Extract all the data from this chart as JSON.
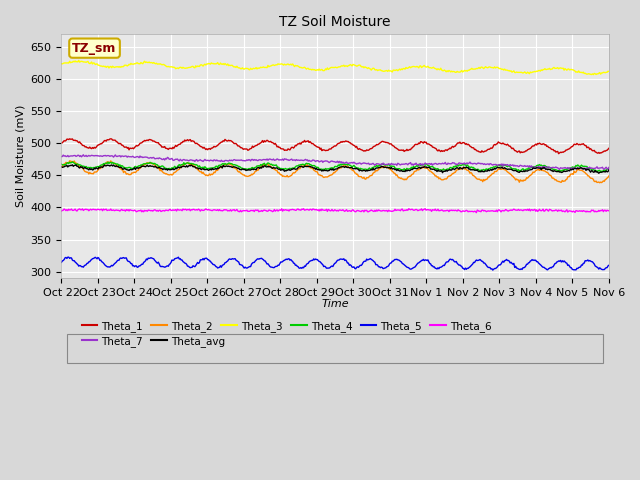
{
  "title": "TZ Soil Moisture",
  "xlabel": "Time",
  "ylabel": "Soil Moisture (mV)",
  "ylim": [
    290,
    670
  ],
  "yticks": [
    300,
    350,
    400,
    450,
    500,
    550,
    600,
    650
  ],
  "x_labels": [
    "Oct 22",
    "Oct 23",
    "Oct 24",
    "Oct 25",
    "Oct 26",
    "Oct 27",
    "Oct 28",
    "Oct 29",
    "Oct 30",
    "Oct 31",
    "Nov 1",
    "Nov 2",
    "Nov 3",
    "Nov 4",
    "Nov 5",
    "Nov 6"
  ],
  "n_days": 15,
  "n_points": 600,
  "series_order": [
    "Theta_1",
    "Theta_2",
    "Theta_3",
    "Theta_4",
    "Theta_5",
    "Theta_6",
    "Theta_7",
    "Theta_avg"
  ],
  "series": {
    "Theta_1": {
      "color": "#cc0000",
      "base": 500,
      "trend": -8,
      "amp": 7,
      "freq": 14
    },
    "Theta_2": {
      "color": "#ff8800",
      "base": 463,
      "trend": -15,
      "amp": 9,
      "freq": 14
    },
    "Theta_3": {
      "color": "#ffff00",
      "base": 624,
      "trend": -12,
      "amp": 4,
      "freq": 8
    },
    "Theta_4": {
      "color": "#00cc00",
      "base": 466,
      "trend": -5,
      "amp": 4,
      "freq": 14
    },
    "Theta_5": {
      "color": "#0000ee",
      "base": 315,
      "trend": -5,
      "amp": 7,
      "freq": 20
    },
    "Theta_6": {
      "color": "#ff00ff",
      "base": 396,
      "trend": -1,
      "amp": 1,
      "freq": 5
    },
    "Theta_7": {
      "color": "#9933cc",
      "base": 480,
      "trend": -18,
      "amp": 2,
      "freq": 3
    },
    "Theta_avg": {
      "color": "#000000",
      "base": 463,
      "trend": -5,
      "amp": 3,
      "freq": 14
    }
  },
  "legend_label": "TZ_sm",
  "legend_label_color": "#8b0000",
  "legend_box_facecolor": "#ffffcc",
  "legend_box_edgecolor": "#ccaa00",
  "fig_facecolor": "#d8d8d8",
  "ax_facecolor": "#e8e8e8",
  "grid_color": "#ffffff",
  "legend_row1": [
    "Theta_1",
    "Theta_2",
    "Theta_3",
    "Theta_4",
    "Theta_5",
    "Theta_6"
  ],
  "legend_row2": [
    "Theta_7",
    "Theta_avg"
  ]
}
